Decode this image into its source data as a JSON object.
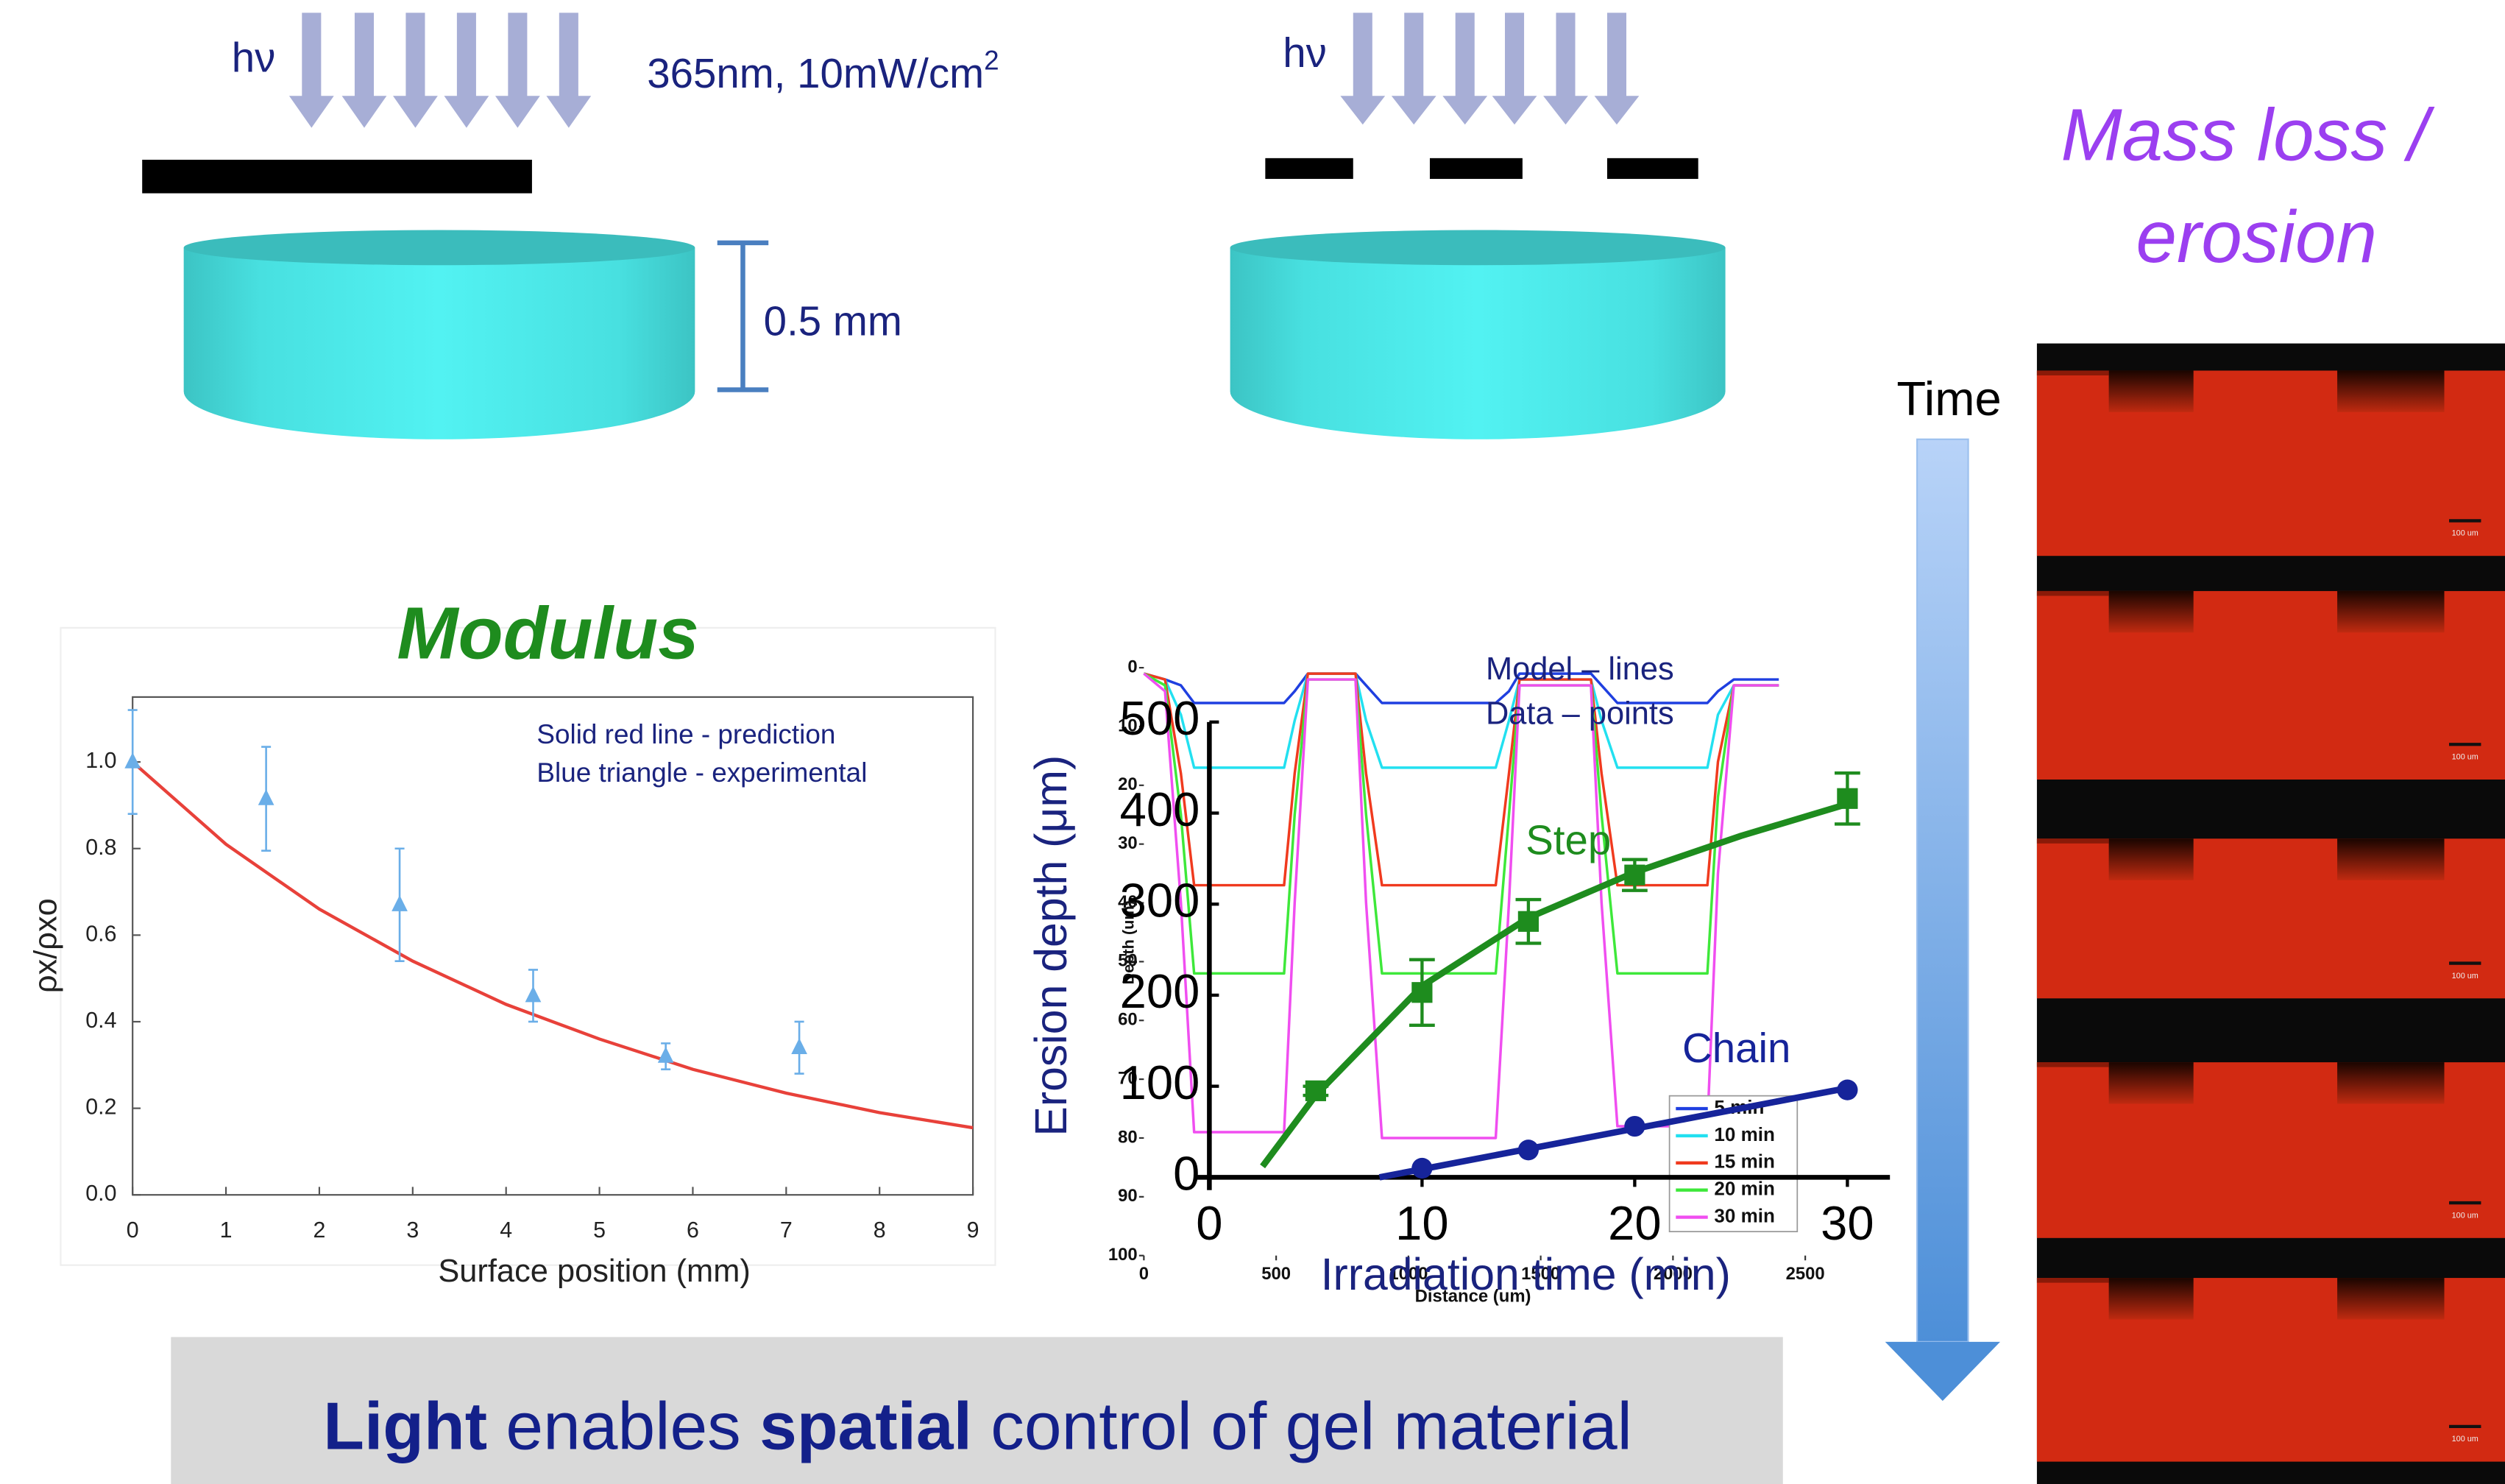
{
  "slide": {
    "light_label_left": "hν",
    "light_label_right": "hν",
    "wavelength_note": {
      "text": "365nm, 10mW/cm",
      "sup": "2"
    },
    "thickness_label": "0.5 mm",
    "mass_loss_title": [
      "Mass loss /",
      "erosion"
    ],
    "time_label": "Time",
    "scale_bar_label": "100 um",
    "banner": [
      {
        "text": "Light",
        "bold": true
      },
      {
        "text": " enables ",
        "bold": false
      },
      {
        "text": "spatial",
        "bold": true
      },
      {
        "text": " control of gel material",
        "bold": false
      }
    ]
  },
  "chart_data": [
    {
      "type": "scatter_line",
      "title": "Modulus",
      "x_label": "Surface position (mm)",
      "y_label": "ρx/ρxo",
      "annotations": [
        "Solid red line - prediction",
        "Blue triangle - experimental"
      ],
      "xlim": [
        0,
        9
      ],
      "xticks": [
        0,
        1,
        2,
        3,
        4,
        5,
        6,
        7,
        8,
        9
      ],
      "ylim": [
        0,
        1.15
      ],
      "yticks": [
        {
          "value": 0,
          "label": "0.0"
        },
        0.2,
        0.4,
        0.6,
        0.8,
        {
          "value": 1,
          "label": "1.0"
        }
      ],
      "series": [
        {
          "style": "line",
          "color": "#e8413a",
          "x": [
            0,
            1,
            2,
            3,
            4,
            5,
            6,
            7,
            8,
            9
          ],
          "values": [
            1.0,
            0.81,
            0.66,
            0.54,
            0.44,
            0.36,
            0.29,
            0.235,
            0.19,
            0.155
          ]
        },
        {
          "style": "triangle",
          "color": "#6aaee8",
          "x": [
            0,
            1.43,
            2.86,
            4.29,
            5.71,
            7.14
          ],
          "values": [
            1.0,
            0.915,
            0.67,
            0.46,
            0.32,
            0.34
          ],
          "errors": [
            0.12,
            0.12,
            0.13,
            0.06,
            0.03,
            0.06
          ]
        }
      ]
    },
    {
      "type": "line",
      "x_label": "Distance (um)",
      "y_label": "Depth (um)",
      "xlim": [
        0,
        2500
      ],
      "xticks": [
        0,
        500,
        1000,
        1500,
        2000,
        2500
      ],
      "ylim": [
        0,
        100
      ],
      "y_inverted": true,
      "yticks": [
        0,
        10,
        20,
        30,
        40,
        50,
        60,
        70,
        80,
        90,
        100
      ],
      "legend": "lower right",
      "x": [
        0,
        80,
        140,
        190,
        530,
        570,
        620,
        800,
        840,
        900,
        1330,
        1380,
        1420,
        1690,
        1730,
        1790,
        2130,
        2170,
        2230,
        2400
      ],
      "series": [
        {
          "name": "5 min",
          "color": "#1f3fe0",
          "values": [
            1,
            2,
            3,
            6,
            6,
            4,
            1,
            1,
            3,
            6,
            6,
            4,
            1,
            1,
            3,
            6,
            6,
            4,
            2,
            2
          ]
        },
        {
          "name": "10 min",
          "color": "#22e0f0",
          "values": [
            1,
            2,
            8,
            17,
            17,
            9,
            1,
            1,
            9,
            17,
            17,
            9,
            2,
            2,
            9,
            17,
            17,
            8,
            3,
            3
          ]
        },
        {
          "name": "15 min",
          "color": "#f03a1e",
          "values": [
            1,
            2,
            18,
            37,
            37,
            18,
            1,
            1,
            18,
            37,
            37,
            18,
            2,
            2,
            18,
            37,
            37,
            16,
            3,
            3
          ]
        },
        {
          "name": "20 min",
          "color": "#3ee83a",
          "values": [
            1,
            3,
            25,
            52,
            52,
            25,
            2,
            2,
            25,
            52,
            52,
            25,
            3,
            3,
            25,
            52,
            52,
            22,
            3,
            3
          ]
        },
        {
          "name": "30 min",
          "color": "#f04ef0",
          "values": [
            1,
            4,
            40,
            79,
            79,
            40,
            2,
            2,
            40,
            80,
            80,
            40,
            3,
            3,
            40,
            78,
            78,
            35,
            3,
            3
          ]
        }
      ]
    },
    {
      "type": "line_scatter",
      "x_label": "Irradiation time (min)",
      "y_label": "Erosion depth (μm)",
      "annotations": [
        "Model – lines",
        "Data – points"
      ],
      "xlim": [
        0,
        32
      ],
      "xticks": [
        0,
        10,
        20,
        30
      ],
      "ylim": [
        0,
        500
      ],
      "yticks": [
        0,
        100,
        200,
        300,
        400,
        500
      ],
      "series": [
        {
          "name": "Step",
          "color": "#1e8c1e",
          "marker": "square",
          "model_x": [
            2.5,
            5,
            10,
            15,
            20,
            25,
            30
          ],
          "model_values": [
            12,
            90,
            210,
            285,
            335,
            375,
            410
          ],
          "x": [
            5,
            10,
            15,
            20,
            30
          ],
          "values": [
            95,
            203,
            281,
            332,
            416
          ],
          "errors": [
            5,
            36,
            24,
            17,
            28
          ]
        },
        {
          "name": "Chain",
          "color": "#16249a",
          "marker": "circle",
          "model_x": [
            8,
            30
          ],
          "model_values": [
            0,
            98
          ],
          "x": [
            10,
            15,
            20,
            30
          ],
          "values": [
            10,
            30,
            56,
            96
          ]
        }
      ]
    }
  ]
}
